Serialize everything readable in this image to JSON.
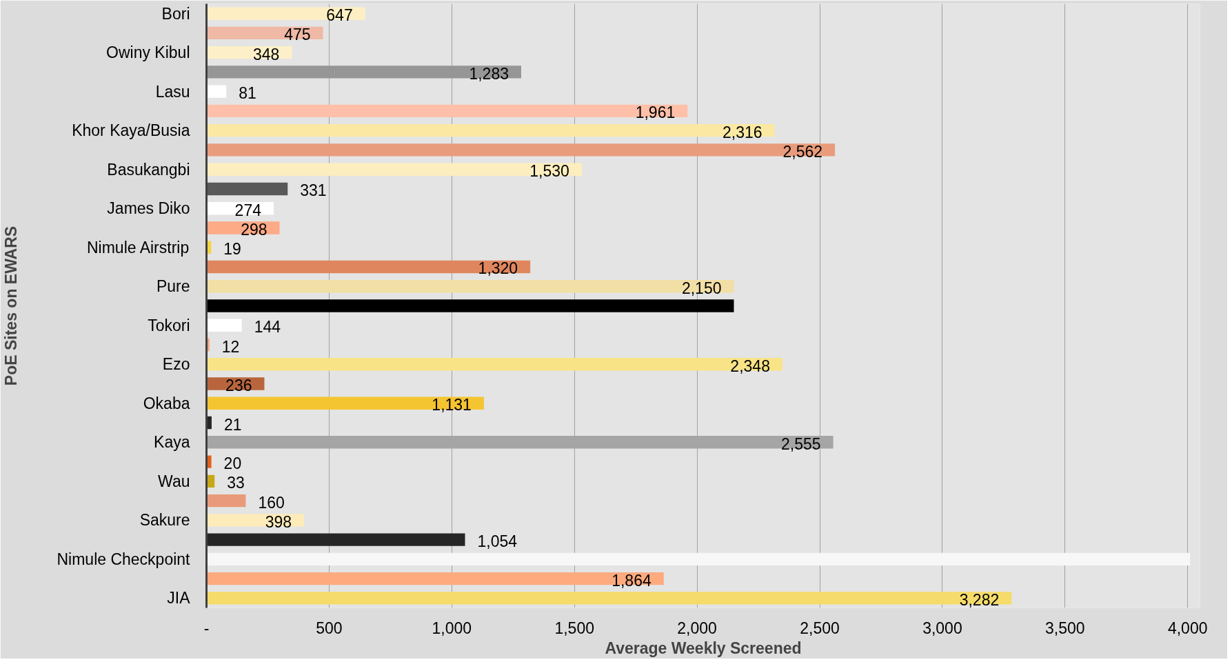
{
  "chart_data": {
    "type": "bar",
    "orientation": "horizontal",
    "xlabel": "Average Weekly Screened",
    "ylabel": "PoE Sites on EWARS",
    "categories": [
      "Bori",
      null,
      "Owiny Kibul",
      null,
      "Lasu",
      null,
      "Khor Kaya/Busia",
      null,
      "Basukangbi",
      null,
      "James Diko",
      null,
      "Nimule Airstrip",
      null,
      "Pure",
      null,
      "Tokori",
      null,
      "Ezo",
      null,
      "Okaba",
      null,
      "Kaya",
      null,
      "Wau",
      null,
      "Sakure",
      null,
      "Nimule Checkpoint",
      null,
      "JIA"
    ],
    "values": [
      647,
      475,
      348,
      1283,
      81,
      1961,
      2316,
      2562,
      1530,
      331,
      274,
      298,
      19,
      1320,
      2150,
      2150,
      144,
      12,
      2348,
      236,
      1131,
      21,
      2555,
      20,
      33,
      160,
      398,
      1054,
      4010,
      1864,
      3282
    ],
    "value_labels": [
      "647",
      "475",
      "348",
      "1,283",
      "81",
      "1,961",
      "2,316",
      "2,562",
      "1,530",
      "331",
      "274",
      "298",
      "19",
      "1,320",
      "2,150",
      null,
      "144",
      "12",
      "2,348",
      "236",
      "1,131",
      "21",
      "2,555",
      "20",
      "33",
      "160",
      "398",
      "1,054",
      null,
      "1,864",
      "3,282"
    ],
    "colors": [
      "#fdefc3",
      "#efb9a5",
      "#fdf0c8",
      "#969696",
      "#ffffff",
      "#ffbfa8",
      "#fbe9a3",
      "#e99c7c",
      "#fdeebf",
      "#595959",
      "#ffffff",
      "#fdaa86",
      "#f5d53f",
      "#e0865e",
      "#f2dfa6",
      "#000000",
      "#ffffff",
      "#f4a582",
      "#f8e387",
      "#b8653e",
      "#f5c431",
      "#262626",
      "#a5a5a5",
      "#e0601c",
      "#c8a818",
      "#e99a7a",
      "#fdebb9",
      "#262626",
      "#f7f7f7",
      "#fdaa7e",
      "#f5dc6a"
    ],
    "xlim": [
      0,
      4050
    ],
    "xticks": [
      {
        "value": 0,
        "label": "-"
      },
      {
        "value": 500,
        "label": "500"
      },
      {
        "value": 1000,
        "label": "1,000"
      },
      {
        "value": 1500,
        "label": "1,500"
      },
      {
        "value": 2000,
        "label": "2,000"
      },
      {
        "value": 2500,
        "label": "2,500"
      },
      {
        "value": 3000,
        "label": "3,000"
      },
      {
        "value": 3500,
        "label": "3,500"
      },
      {
        "value": 4000,
        "label": "4,000"
      }
    ],
    "grid": "x"
  }
}
